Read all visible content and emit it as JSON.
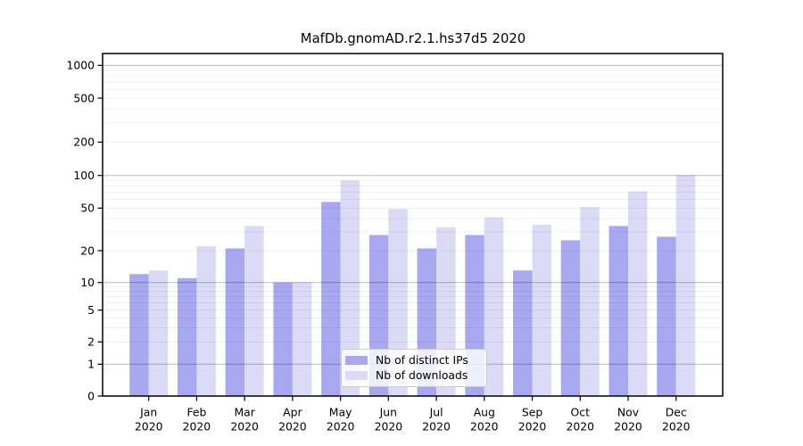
{
  "chart_data": {
    "type": "bar",
    "title": "MafDb.gnomAD.r2.1.hs37d5 2020",
    "y_scale": "symlog",
    "ylim": [
      0,
      1280
    ],
    "grid": true,
    "legend_position": "lower center",
    "y_ticks": [
      0,
      1,
      2,
      5,
      10,
      20,
      50,
      100,
      200,
      500,
      1000
    ],
    "major_gridlines": [
      1,
      10,
      100,
      1000
    ],
    "categories": [
      "Jan 2020",
      "Feb 2020",
      "Mar 2020",
      "Apr 2020",
      "May 2020",
      "Jun 2020",
      "Jul 2020",
      "Aug 2020",
      "Sep 2020",
      "Oct 2020",
      "Nov 2020",
      "Dec 2020"
    ],
    "series": [
      {
        "name": "Nb of distinct IPs",
        "color": "#a8a8f0",
        "values": [
          12,
          11,
          21,
          10,
          57,
          28,
          21,
          28,
          13,
          25,
          34,
          27
        ]
      },
      {
        "name": "Nb of downloads",
        "color": "#dbdbf8",
        "values": [
          13,
          22,
          34,
          10,
          90,
          49,
          33,
          41,
          35,
          51,
          71,
          100
        ]
      }
    ]
  }
}
